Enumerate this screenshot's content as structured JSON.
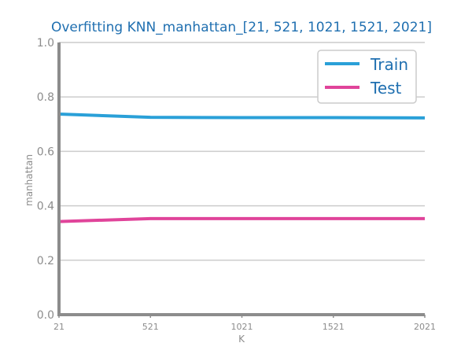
{
  "chart_data": {
    "type": "line",
    "title": "Overfitting KNN_manhattan_[21, 521, 1021, 1521, 2021]",
    "xlabel": "K",
    "ylabel": "manhattan",
    "categories": [
      "21",
      "521",
      "1021",
      "1521",
      "2021"
    ],
    "x": [
      21,
      521,
      1021,
      1521,
      2021
    ],
    "xlim": [
      21,
      2021
    ],
    "ylim": [
      0.0,
      1.0
    ],
    "yticks": [
      "0.0",
      "0.2",
      "0.4",
      "0.6",
      "0.8",
      "1.0"
    ],
    "grid": true,
    "legend_position": "top-right",
    "series": [
      {
        "name": "Train",
        "color": "#2aa0d8",
        "values": [
          0.737,
          0.725,
          0.724,
          0.724,
          0.723
        ]
      },
      {
        "name": "Test",
        "color": "#e0449a",
        "values": [
          0.342,
          0.353,
          0.353,
          0.353,
          0.353
        ]
      }
    ]
  }
}
